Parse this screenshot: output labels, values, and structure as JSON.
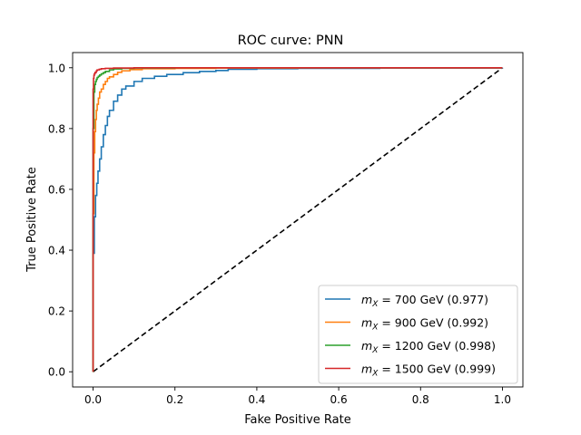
{
  "chart_data": {
    "type": "line",
    "title": "ROC curve: PNN",
    "xlabel": "Fake Positive Rate",
    "ylabel": "True Positive Rate",
    "xlim": [
      -0.05,
      1.05
    ],
    "ylim": [
      -0.05,
      1.05
    ],
    "xticks": [
      "0.0",
      "0.2",
      "0.4",
      "0.6",
      "0.8",
      "1.0"
    ],
    "yticks": [
      "0.0",
      "0.2",
      "0.4",
      "0.6",
      "0.8",
      "1.0"
    ],
    "grid": false,
    "legend_position": "lower-right",
    "diagonal": {
      "style": "dashed",
      "color": "#000000",
      "x": [
        0,
        1
      ],
      "y": [
        0,
        1
      ]
    },
    "series": [
      {
        "mass": "700 GeV",
        "auc": "(0.977)",
        "color": "#1f77b4",
        "x": [
          0,
          0,
          0.003,
          0.006,
          0.009,
          0.012,
          0.016,
          0.02,
          0.025,
          0.03,
          0.035,
          0.04,
          0.05,
          0.06,
          0.07,
          0.08,
          0.1,
          0.12,
          0.15,
          0.18,
          0.22,
          0.26,
          0.3,
          0.33,
          0.4,
          0.5,
          0.7,
          1.0
        ],
        "y": [
          0,
          0.39,
          0.51,
          0.58,
          0.62,
          0.66,
          0.7,
          0.74,
          0.78,
          0.81,
          0.84,
          0.86,
          0.89,
          0.91,
          0.93,
          0.94,
          0.955,
          0.965,
          0.972,
          0.978,
          0.984,
          0.988,
          0.991,
          0.995,
          0.997,
          0.998,
          0.999,
          1.0
        ]
      },
      {
        "mass": "900 GeV",
        "auc": "(0.992)",
        "color": "#ff7f0e",
        "x": [
          0,
          0,
          0.002,
          0.004,
          0.006,
          0.008,
          0.01,
          0.013,
          0.016,
          0.02,
          0.025,
          0.03,
          0.035,
          0.04,
          0.05,
          0.06,
          0.07,
          0.09,
          0.12,
          0.2,
          0.3,
          0.5,
          1.0
        ],
        "y": [
          0,
          0.52,
          0.72,
          0.79,
          0.83,
          0.86,
          0.88,
          0.9,
          0.92,
          0.93,
          0.945,
          0.955,
          0.965,
          0.97,
          0.978,
          0.985,
          0.99,
          0.994,
          0.997,
          0.998,
          0.999,
          1.0,
          1.0
        ]
      },
      {
        "mass": "1200 GeV",
        "auc": "(0.998)",
        "color": "#2ca02c",
        "x": [
          0,
          0,
          0.002,
          0.004,
          0.006,
          0.008,
          0.01,
          0.013,
          0.016,
          0.02,
          0.025,
          0.03,
          0.04,
          0.05,
          0.07,
          0.1,
          0.2,
          1.0
        ],
        "y": [
          0,
          0.8,
          0.92,
          0.945,
          0.955,
          0.962,
          0.968,
          0.972,
          0.976,
          0.98,
          0.984,
          0.988,
          0.993,
          0.996,
          0.998,
          0.999,
          1.0,
          1.0
        ]
      },
      {
        "mass": "1500 GeV",
        "auc": "(0.999)",
        "color": "#d62728",
        "x": [
          0,
          0,
          0.001,
          0.002,
          0.003,
          0.005,
          0.008,
          0.01,
          0.015,
          0.02,
          0.03,
          0.05,
          0.1,
          1.0
        ],
        "y": [
          0,
          0.93,
          0.965,
          0.975,
          0.98,
          0.985,
          0.99,
          0.993,
          0.995,
          0.997,
          0.998,
          0.999,
          1.0,
          1.0
        ]
      }
    ]
  }
}
